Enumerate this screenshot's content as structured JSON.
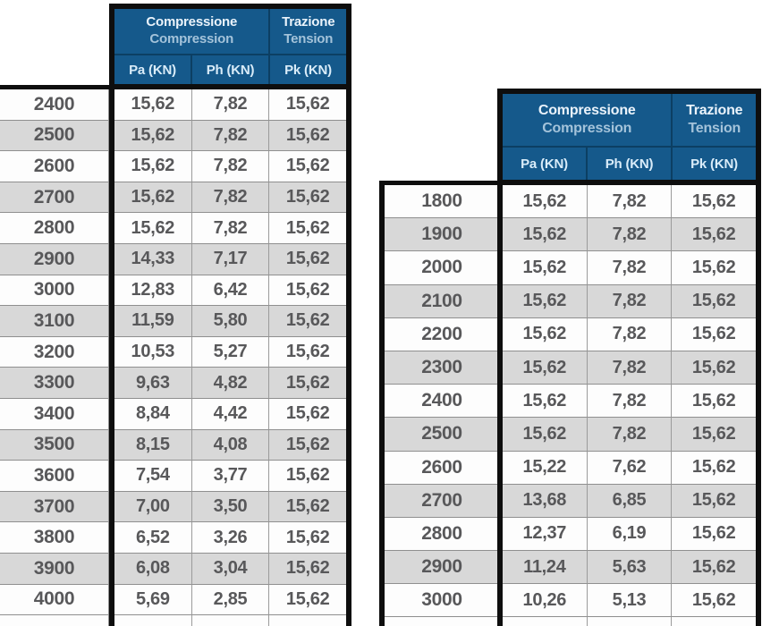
{
  "header": {
    "compression": {
      "it": "Compressione",
      "en": "Compression"
    },
    "tension": {
      "it": "Trazione",
      "en": "Tension"
    },
    "columns": {
      "pa": "Pa (KN)",
      "ph": "Ph (KN)",
      "pk": "Pk (KN)"
    }
  },
  "left_table": {
    "rows": [
      {
        "length": "2400",
        "pa": "15,62",
        "ph": "7,82",
        "pk": "15,62"
      },
      {
        "length": "2500",
        "pa": "15,62",
        "ph": "7,82",
        "pk": "15,62"
      },
      {
        "length": "2600",
        "pa": "15,62",
        "ph": "7,82",
        "pk": "15,62"
      },
      {
        "length": "2700",
        "pa": "15,62",
        "ph": "7,82",
        "pk": "15,62"
      },
      {
        "length": "2800",
        "pa": "15,62",
        "ph": "7,82",
        "pk": "15,62"
      },
      {
        "length": "2900",
        "pa": "14,33",
        "ph": "7,17",
        "pk": "15,62"
      },
      {
        "length": "3000",
        "pa": "12,83",
        "ph": "6,42",
        "pk": "15,62"
      },
      {
        "length": "3100",
        "pa": "11,59",
        "ph": "5,80",
        "pk": "15,62"
      },
      {
        "length": "3200",
        "pa": "10,53",
        "ph": "5,27",
        "pk": "15,62"
      },
      {
        "length": "3300",
        "pa": "9,63",
        "ph": "4,82",
        "pk": "15,62"
      },
      {
        "length": "3400",
        "pa": "8,84",
        "ph": "4,42",
        "pk": "15,62"
      },
      {
        "length": "3500",
        "pa": "8,15",
        "ph": "4,08",
        "pk": "15,62"
      },
      {
        "length": "3600",
        "pa": "7,54",
        "ph": "3,77",
        "pk": "15,62"
      },
      {
        "length": "3700",
        "pa": "7,00",
        "ph": "3,50",
        "pk": "15,62"
      },
      {
        "length": "3800",
        "pa": "6,52",
        "ph": "3,26",
        "pk": "15,62"
      },
      {
        "length": "3900",
        "pa": "6,08",
        "ph": "3,04",
        "pk": "15,62"
      },
      {
        "length": "4000",
        "pa": "5,69",
        "ph": "2,85",
        "pk": "15,62"
      }
    ]
  },
  "right_table": {
    "rows": [
      {
        "length": "1800",
        "pa": "15,62",
        "ph": "7,82",
        "pk": "15,62"
      },
      {
        "length": "1900",
        "pa": "15,62",
        "ph": "7,82",
        "pk": "15,62"
      },
      {
        "length": "2000",
        "pa": "15,62",
        "ph": "7,82",
        "pk": "15,62"
      },
      {
        "length": "2100",
        "pa": "15,62",
        "ph": "7,82",
        "pk": "15,62"
      },
      {
        "length": "2200",
        "pa": "15,62",
        "ph": "7,82",
        "pk": "15,62"
      },
      {
        "length": "2300",
        "pa": "15,62",
        "ph": "7,82",
        "pk": "15,62"
      },
      {
        "length": "2400",
        "pa": "15,62",
        "ph": "7,82",
        "pk": "15,62"
      },
      {
        "length": "2500",
        "pa": "15,62",
        "ph": "7,82",
        "pk": "15,62"
      },
      {
        "length": "2600",
        "pa": "15,22",
        "ph": "7,62",
        "pk": "15,62"
      },
      {
        "length": "2700",
        "pa": "13,68",
        "ph": "6,85",
        "pk": "15,62"
      },
      {
        "length": "2800",
        "pa": "12,37",
        "ph": "6,19",
        "pk": "15,62"
      },
      {
        "length": "2900",
        "pa": "11,24",
        "ph": "5,63",
        "pk": "15,62"
      },
      {
        "length": "3000",
        "pa": "10,26",
        "ph": "5,13",
        "pk": "15,62"
      }
    ]
  },
  "colors": {
    "header_blue": "#15598b",
    "header_blue_divider": "#0c3f63",
    "header_text_primary": "#eaf3fb",
    "header_text_secondary": "#a4c3da",
    "unit_text": "#d9ecf9",
    "border_black": "#0e0e0e",
    "row_alt_gray": "#d8d8d8",
    "row_white": "#fdfdfd",
    "value_text": "#58585a",
    "thin_border": "#8f8f8f"
  }
}
